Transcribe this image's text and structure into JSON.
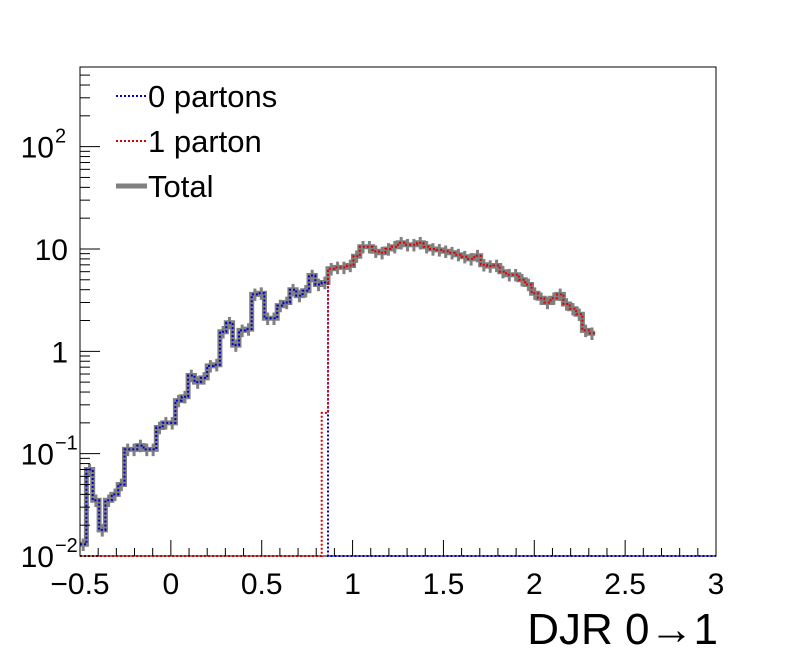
{
  "chart_data": {
    "type": "line",
    "title": "",
    "xlabel": "DJR 0→1",
    "ylabel": "",
    "xlim": [
      -0.5,
      3.0
    ],
    "ylim": [
      0.01,
      600
    ],
    "yscale": "log",
    "x_ticks": [
      {
        "value": -0.5,
        "label": "−0.5"
      },
      {
        "value": 0,
        "label": "0"
      },
      {
        "value": 0.5,
        "label": "0.5"
      },
      {
        "value": 1,
        "label": "1"
      },
      {
        "value": 1.5,
        "label": "1.5"
      },
      {
        "value": 2,
        "label": "2"
      },
      {
        "value": 2.5,
        "label": "2.5"
      },
      {
        "value": 3,
        "label": "3"
      }
    ],
    "y_ticks": [
      {
        "value": 0.01,
        "base": "10",
        "exp": "−2"
      },
      {
        "value": 0.1,
        "base": "10",
        "exp": "−1"
      },
      {
        "value": 1,
        "base": "1",
        "exp": ""
      },
      {
        "value": 10,
        "base": "10",
        "exp": ""
      },
      {
        "value": 100,
        "base": "10",
        "exp": "2"
      }
    ],
    "legend_position": "top-left",
    "bin_edges_from": -0.5,
    "bin_width": 0.035,
    "series": [
      {
        "name": "0 partons",
        "color": "#0000cc",
        "style": "dotted",
        "values": [
          0.013,
          0.07,
          0.035,
          0.018,
          0.035,
          0.04,
          0.05,
          0.11,
          0.11,
          0.12,
          0.11,
          0.11,
          0.18,
          0.2,
          0.2,
          0.33,
          0.36,
          0.58,
          0.5,
          0.55,
          0.72,
          0.74,
          1.55,
          1.9,
          1.15,
          1.6,
          1.65,
          3.6,
          3.7,
          2.1,
          2.1,
          2.8,
          3.0,
          4.0,
          3.5,
          3.9,
          5.5,
          4.5,
          4.7,
          0.01,
          0.01,
          0.01,
          0.01,
          0.01,
          0.01,
          0.01,
          0.01,
          0.01,
          0.01,
          0.01,
          0.01,
          0.01,
          0.01,
          0.01,
          0.01,
          0.01,
          0.01,
          0.01,
          0.01,
          0.01,
          0.01,
          0.01,
          0.01,
          0.01,
          0.01,
          0.01,
          0.01,
          0.01,
          0.01,
          0.01,
          0.01,
          0.01,
          0.01,
          0.01,
          0.01,
          0.01,
          0.01,
          0.01,
          0.01,
          0.01,
          0.01,
          0.01,
          0.01,
          0.01,
          0.01,
          0.01,
          0.01,
          0.01,
          0.01,
          0.01,
          0.01,
          0.01,
          0.01,
          0.01,
          0.01,
          0.01,
          0.01,
          0.01,
          0.01,
          0.01
        ]
      },
      {
        "name": "1 parton",
        "color": "#dd0000",
        "style": "dotted",
        "values": [
          0.01,
          0.01,
          0.01,
          0.01,
          0.01,
          0.01,
          0.01,
          0.01,
          0.01,
          0.01,
          0.01,
          0.01,
          0.01,
          0.01,
          0.01,
          0.01,
          0.01,
          0.01,
          0.01,
          0.01,
          0.01,
          0.01,
          0.01,
          0.01,
          0.01,
          0.01,
          0.01,
          0.01,
          0.01,
          0.01,
          0.01,
          0.01,
          0.01,
          0.01,
          0.01,
          0.01,
          0.01,
          0.01,
          0.25,
          6.4,
          6.6,
          6.6,
          6.9,
          8.5,
          10.5,
          10.5,
          9.5,
          9.2,
          10.0,
          10.5,
          11.5,
          11.0,
          11.0,
          11.5,
          10.5,
          10.0,
          9.8,
          9.5,
          9.2,
          8.8,
          8.4,
          8.0,
          8.6,
          7.0,
          6.8,
          6.9,
          6.0,
          5.6,
          5.6,
          5.0,
          4.5,
          3.7,
          3.3,
          3.0,
          3.3,
          3.6,
          2.9,
          2.6,
          2.3,
          1.6,
          1.5
        ]
      },
      {
        "name": "Total",
        "color": "#808080",
        "style": "solid",
        "values": [
          0.013,
          0.07,
          0.035,
          0.018,
          0.035,
          0.04,
          0.05,
          0.11,
          0.11,
          0.12,
          0.11,
          0.11,
          0.18,
          0.2,
          0.2,
          0.33,
          0.36,
          0.58,
          0.5,
          0.55,
          0.72,
          0.74,
          1.55,
          1.9,
          1.15,
          1.6,
          1.65,
          3.6,
          3.7,
          2.1,
          2.1,
          2.8,
          3.0,
          4.0,
          3.5,
          3.9,
          5.5,
          4.5,
          4.7,
          6.4,
          6.6,
          6.6,
          6.9,
          8.5,
          10.5,
          10.5,
          9.5,
          9.2,
          10.0,
          10.5,
          11.5,
          11.0,
          11.0,
          11.5,
          10.5,
          10.0,
          9.8,
          9.5,
          9.2,
          8.8,
          8.4,
          8.0,
          8.6,
          7.0,
          6.8,
          6.9,
          6.0,
          5.6,
          5.6,
          5.0,
          4.5,
          3.7,
          3.3,
          3.0,
          3.3,
          3.6,
          2.9,
          2.6,
          2.3,
          1.6,
          1.5
        ]
      }
    ]
  },
  "legend": {
    "items": [
      {
        "label": "0 partons",
        "color": "#0000cc"
      },
      {
        "label": "1 parton",
        "color": "#dd0000"
      },
      {
        "label": "Total",
        "color": "#808080"
      }
    ]
  }
}
